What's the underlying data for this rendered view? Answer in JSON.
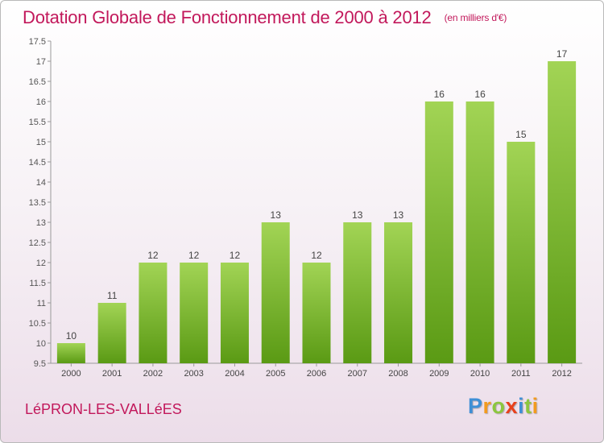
{
  "header": {
    "title": "Dotation Globale de Fonctionnement de 2000 à 2012",
    "subtitle": "(en milliers d'€)"
  },
  "footer": {
    "commune": "LéPRON-LES-VALLéES",
    "logo_letters": [
      "P",
      "r",
      "o",
      "x",
      "i",
      "t",
      "i"
    ]
  },
  "colors": {
    "title": "#c2185b",
    "bar_light": "#a2d455",
    "bar_dark": "#5a9a14",
    "logo": [
      "#3f8fd6",
      "#f29b1f",
      "#8cc63f",
      "#e8401c",
      "#3f8fd6",
      "#8cc63f",
      "#f29b1f"
    ]
  },
  "chart_data": {
    "type": "bar",
    "title": "Dotation Globale de Fonctionnement de 2000 à 2012",
    "subtitle": "(en milliers d'€)",
    "categories": [
      "2000",
      "2001",
      "2002",
      "2003",
      "2004",
      "2005",
      "2006",
      "2007",
      "2008",
      "2009",
      "2010",
      "2011",
      "2012"
    ],
    "values": [
      10,
      11,
      12,
      12,
      12,
      13,
      12,
      13,
      13,
      16,
      16,
      15,
      17
    ],
    "ylim": [
      9.5,
      17.5
    ],
    "yticks": [
      "9.5",
      "10",
      "10.5",
      "11",
      "11.5",
      "12",
      "12.5",
      "13",
      "13.5",
      "14",
      "14.5",
      "15",
      "15.5",
      "16",
      "16.5",
      "17",
      "17.5"
    ],
    "grid": false,
    "legend": "none"
  }
}
